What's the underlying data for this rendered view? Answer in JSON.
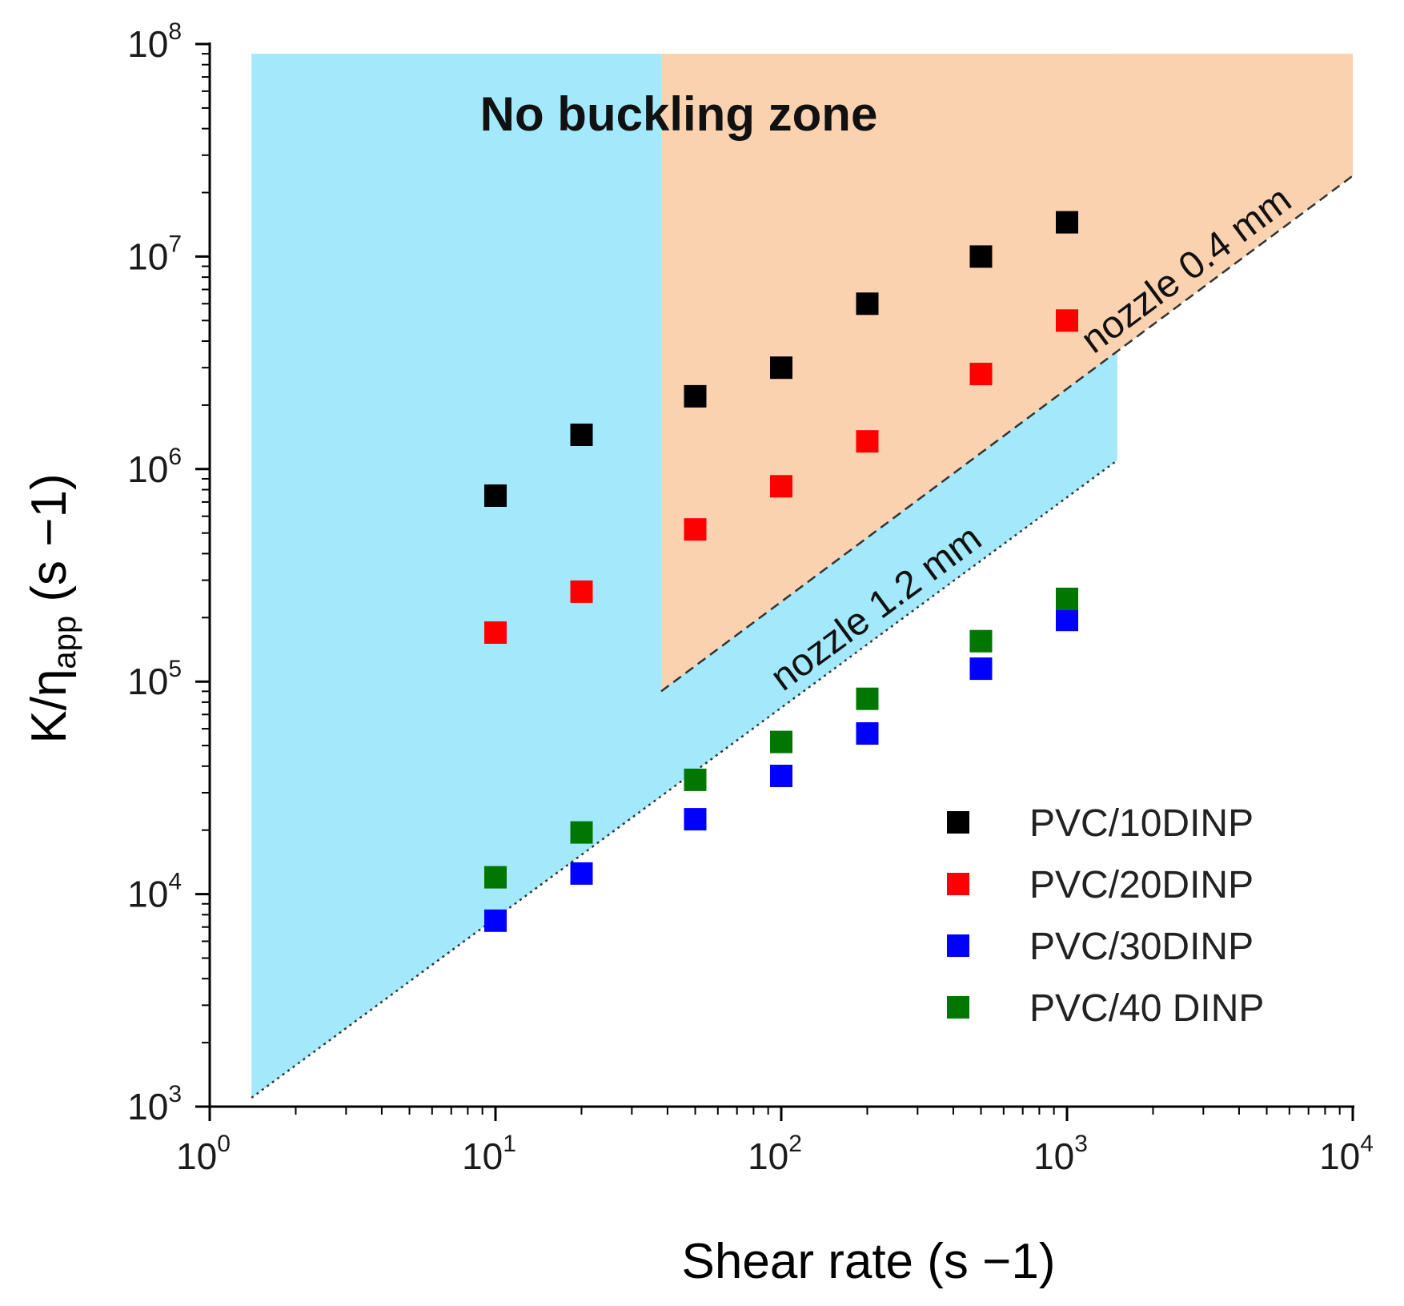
{
  "chart_data": {
    "type": "scatter",
    "title": "",
    "xlabel": "Shear rate (s −1)",
    "ylabel_main": "K/η",
    "ylabel_sub": "app",
    "ylabel_unit": " (s −1)",
    "x_scale": "log",
    "y_scale": "log",
    "xlim": [
      1,
      10000
    ],
    "ylim": [
      1000,
      100000000
    ],
    "x_ticks": [
      {
        "value": 1,
        "base": "10",
        "exp": "0"
      },
      {
        "value": 10,
        "base": "10",
        "exp": "1"
      },
      {
        "value": 100,
        "base": "10",
        "exp": "2"
      },
      {
        "value": 1000,
        "base": "10",
        "exp": "3"
      },
      {
        "value": 10000,
        "base": "10",
        "exp": "4"
      }
    ],
    "y_ticks": [
      {
        "value": 1000,
        "base": "10",
        "exp": "3"
      },
      {
        "value": 10000,
        "base": "10",
        "exp": "4"
      },
      {
        "value": 100000,
        "base": "10",
        "exp": "5"
      },
      {
        "value": 1000000,
        "base": "10",
        "exp": "6"
      },
      {
        "value": 10000000,
        "base": "10",
        "exp": "7"
      },
      {
        "value": 100000000,
        "base": "10",
        "exp": "8"
      }
    ],
    "grid": false,
    "legend_position": "bottom-right",
    "series": [
      {
        "name": "PVC/10DINP",
        "color": "#000000",
        "x": [
          10,
          20,
          50,
          100,
          200,
          500,
          1000
        ],
        "y": [
          750000,
          1450000,
          2200000,
          3000000,
          6000000,
          10000000,
          14500000
        ]
      },
      {
        "name": "PVC/20DINP",
        "color": "#ff0000",
        "x": [
          10,
          20,
          50,
          100,
          200,
          500,
          1000
        ],
        "y": [
          170000,
          265000,
          520000,
          830000,
          1350000,
          2800000,
          5000000
        ]
      },
      {
        "name": "PVC/30DINP",
        "color": "#0000ff",
        "x": [
          10,
          20,
          50,
          100,
          200,
          500,
          1000
        ],
        "y": [
          7500,
          12500,
          22500,
          36000,
          57000,
          115000,
          195000
        ]
      },
      {
        "name": "PVC/40 DINP",
        "color": "#007700",
        "x": [
          10,
          20,
          50,
          100,
          200,
          500,
          1000
        ],
        "y": [
          12000,
          19500,
          34500,
          52000,
          83000,
          155000,
          245000
        ]
      }
    ],
    "regions": [
      {
        "name": "blue-zone",
        "color": "#a3e9fb",
        "points": [
          [
            1.4,
            90000000
          ],
          [
            1500,
            90000000
          ],
          [
            1500,
            1100000
          ],
          [
            1.4,
            1100
          ]
        ]
      },
      {
        "name": "orange-zone",
        "color": "#fbd2b0",
        "points": [
          [
            38,
            90000000
          ],
          [
            10000,
            90000000
          ],
          [
            10000,
            24000000
          ],
          [
            38,
            90000
          ]
        ]
      }
    ],
    "boundary_lines": [
      {
        "name": "nozzle 0.4 mm",
        "style": "dashed",
        "points": [
          [
            38,
            90000
          ],
          [
            10000,
            24000000
          ]
        ]
      },
      {
        "name": "nozzle 1.2 mm",
        "style": "dotted",
        "points": [
          [
            1.4,
            1100
          ],
          [
            1500,
            1100000
          ]
        ]
      }
    ],
    "annotations": {
      "zone_title": "No buckling zone",
      "nozzle_04": "nozzle 0.4 mm",
      "nozzle_12": "nozzle 1.2 mm"
    }
  }
}
